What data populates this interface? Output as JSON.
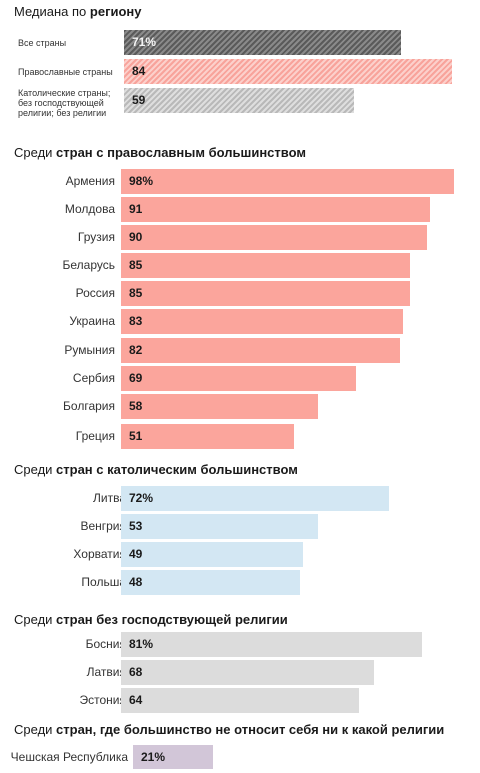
{
  "chart_data": [
    {
      "type": "bar",
      "orientation": "horizontal",
      "title_parts": [
        {
          "text": "Медиана по ",
          "bold": false
        },
        {
          "text": "региону",
          "bold": true
        }
      ],
      "categories": [
        "Все страны",
        "Православные страны",
        "Католические страны; без господствующей религии; без религии"
      ],
      "values": [
        71,
        84,
        59
      ],
      "labels": [
        "71%",
        "84",
        "59"
      ],
      "fill": "striped",
      "colors": [
        "#6d6d6d",
        "#f9b1aa",
        "#c6c6c6"
      ]
    },
    {
      "type": "bar",
      "orientation": "horizontal",
      "title_parts": [
        {
          "text": "Среди ",
          "bold": false
        },
        {
          "text": "стран с православным большинством",
          "bold": true
        }
      ],
      "categories": [
        "Армения",
        "Молдова",
        "Грузия",
        "Беларусь",
        "Россия",
        "Украина",
        "Румыния",
        "Сербия",
        "Болгария",
        "Греция"
      ],
      "values": [
        98,
        91,
        90,
        85,
        85,
        83,
        82,
        69,
        58,
        51
      ],
      "labels": [
        "98%",
        "91",
        "90",
        "85",
        "85",
        "83",
        "82",
        "69",
        "58",
        "51"
      ],
      "color": "#fba59c"
    },
    {
      "type": "bar",
      "orientation": "horizontal",
      "title_parts": [
        {
          "text": "Среди ",
          "bold": false
        },
        {
          "text": "стран с католическим большинством",
          "bold": true
        }
      ],
      "categories": [
        "Литва",
        "Венгрия",
        "Хорватия",
        "Польша"
      ],
      "values": [
        72,
        53,
        49,
        48
      ],
      "labels": [
        "72%",
        "53",
        "49",
        "48"
      ],
      "color": "#d3e7f3"
    },
    {
      "type": "bar",
      "orientation": "horizontal",
      "title_parts": [
        {
          "text": "Среди ",
          "bold": false
        },
        {
          "text": "стран без господствующей религии",
          "bold": true
        }
      ],
      "categories": [
        "Босния",
        "Латвия",
        "Эстония"
      ],
      "values": [
        81,
        68,
        64
      ],
      "labels": [
        "81%",
        "68",
        "64"
      ],
      "color": "#dcdcdc"
    },
    {
      "type": "bar",
      "orientation": "horizontal",
      "title_parts": [
        {
          "text": "Среди ",
          "bold": false
        },
        {
          "text": "стран, где большинство не относит себя ни к какой религии",
          "bold": true
        }
      ],
      "categories": [
        "Чешская Республика"
      ],
      "values": [
        21
      ],
      "labels": [
        "21%"
      ],
      "color": "#d2c6d8"
    }
  ]
}
